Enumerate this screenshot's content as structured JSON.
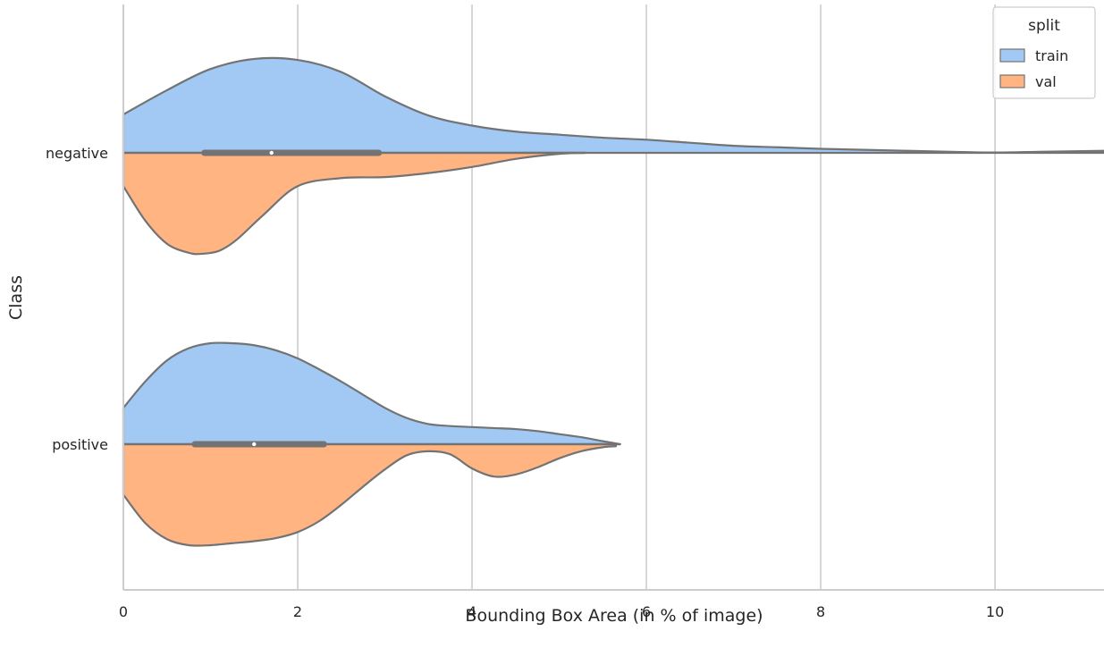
{
  "chart_data": {
    "type": "violin",
    "orientation": "horizontal",
    "split": true,
    "xlabel": "Bounding Box Area (in % of image)",
    "ylabel": "Class",
    "xlim": [
      0,
      11.25
    ],
    "xticks": [
      0,
      2,
      4,
      6,
      8,
      10
    ],
    "grid": true,
    "categories": [
      "negative",
      "positive"
    ],
    "legend": {
      "title": "split",
      "placement": "top-right",
      "entries": [
        {
          "name": "train",
          "color": "#a1c9f4"
        },
        {
          "name": "val",
          "color": "#ffb482"
        }
      ]
    },
    "series": [
      {
        "name": "train",
        "color": "#a1c9f4",
        "violins": [
          {
            "category": "negative",
            "density_x": [
              0,
              0.5,
              1.0,
              1.5,
              2.0,
              2.5,
              3.0,
              3.5,
              4.0,
              4.5,
              5.0,
              5.5,
              6.0,
              6.5,
              7.0,
              7.5,
              8.0,
              8.5,
              9.0,
              9.5,
              10.0,
              10.5,
              11.25
            ],
            "density": [
              0.38,
              0.62,
              0.83,
              0.93,
              0.92,
              0.8,
              0.56,
              0.37,
              0.27,
              0.21,
              0.18,
              0.15,
              0.13,
              0.1,
              0.07,
              0.055,
              0.04,
              0.03,
              0.02,
              0.01,
              0.003,
              0.01,
              0.02
            ]
          },
          {
            "category": "positive",
            "density_x": [
              0,
              0.25,
              0.5,
              0.75,
              1.0,
              1.25,
              1.5,
              1.75,
              2.0,
              2.25,
              2.5,
              2.75,
              3.0,
              3.25,
              3.5,
              3.75,
              4.0,
              4.25,
              4.5,
              4.75,
              5.0,
              5.25,
              5.5,
              5.7
            ],
            "density": [
              0.36,
              0.62,
              0.83,
              0.95,
              1.0,
              1.0,
              0.98,
              0.93,
              0.85,
              0.74,
              0.62,
              0.49,
              0.36,
              0.26,
              0.2,
              0.18,
              0.17,
              0.16,
              0.15,
              0.13,
              0.1,
              0.07,
              0.03,
              0.0
            ]
          }
        ]
      },
      {
        "name": "val",
        "color": "#ffb482",
        "violins": [
          {
            "category": "negative",
            "density_x": [
              0,
              0.25,
              0.5,
              0.75,
              0.9,
              1.1,
              1.3,
              1.6,
              2.0,
              2.5,
              3.0,
              3.5,
              4.0,
              4.5,
              5.0,
              5.3
            ],
            "density": [
              0.33,
              0.67,
              0.9,
              0.99,
              1.0,
              0.97,
              0.86,
              0.62,
              0.33,
              0.25,
              0.24,
              0.2,
              0.14,
              0.06,
              0.01,
              0.0
            ]
          },
          {
            "category": "positive",
            "density_x": [
              0,
              0.25,
              0.5,
              0.75,
              1.0,
              1.25,
              1.5,
              1.75,
              2.0,
              2.25,
              2.5,
              2.75,
              3.0,
              3.25,
              3.5,
              3.75,
              4.0,
              4.25,
              4.5,
              4.75,
              5.0,
              5.25,
              5.5,
              5.65
            ],
            "density": [
              0.5,
              0.78,
              0.94,
              1.0,
              1.0,
              0.98,
              0.96,
              0.93,
              0.87,
              0.76,
              0.6,
              0.42,
              0.25,
              0.11,
              0.07,
              0.1,
              0.24,
              0.32,
              0.3,
              0.23,
              0.14,
              0.07,
              0.03,
              0.02
            ]
          }
        ]
      }
    ],
    "box_stats": [
      {
        "category": "negative",
        "q1": 0.93,
        "median": 1.7,
        "q3": 2.93,
        "whisker_low": 0.0,
        "whisker_high": 5.3
      },
      {
        "category": "positive",
        "q1": 0.82,
        "median": 1.5,
        "q3": 2.3,
        "whisker_low": 0.0,
        "whisker_high": 5.7
      }
    ]
  }
}
